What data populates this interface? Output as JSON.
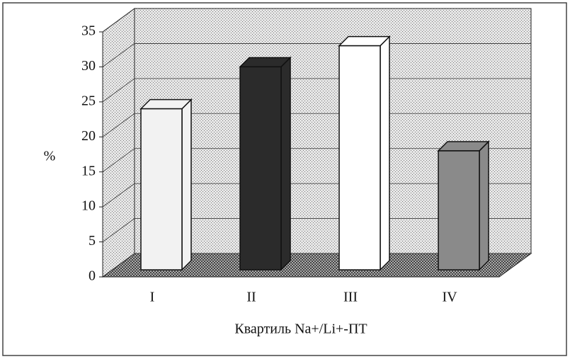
{
  "chart_data": {
    "type": "bar3d",
    "x_label": "Квартиль Na+/Li+-ПТ",
    "y_label": "%",
    "categories": [
      "I",
      "II",
      "III",
      "IV"
    ],
    "values": [
      23,
      29,
      32,
      17
    ],
    "colors": [
      "#f2f2f2",
      "#2b2b2b",
      "#ffffff",
      "#8a8a8a"
    ],
    "ylim": [
      0,
      35
    ],
    "yticks": [
      0,
      5,
      10,
      15,
      20,
      25,
      30,
      35
    ],
    "grid": true
  }
}
